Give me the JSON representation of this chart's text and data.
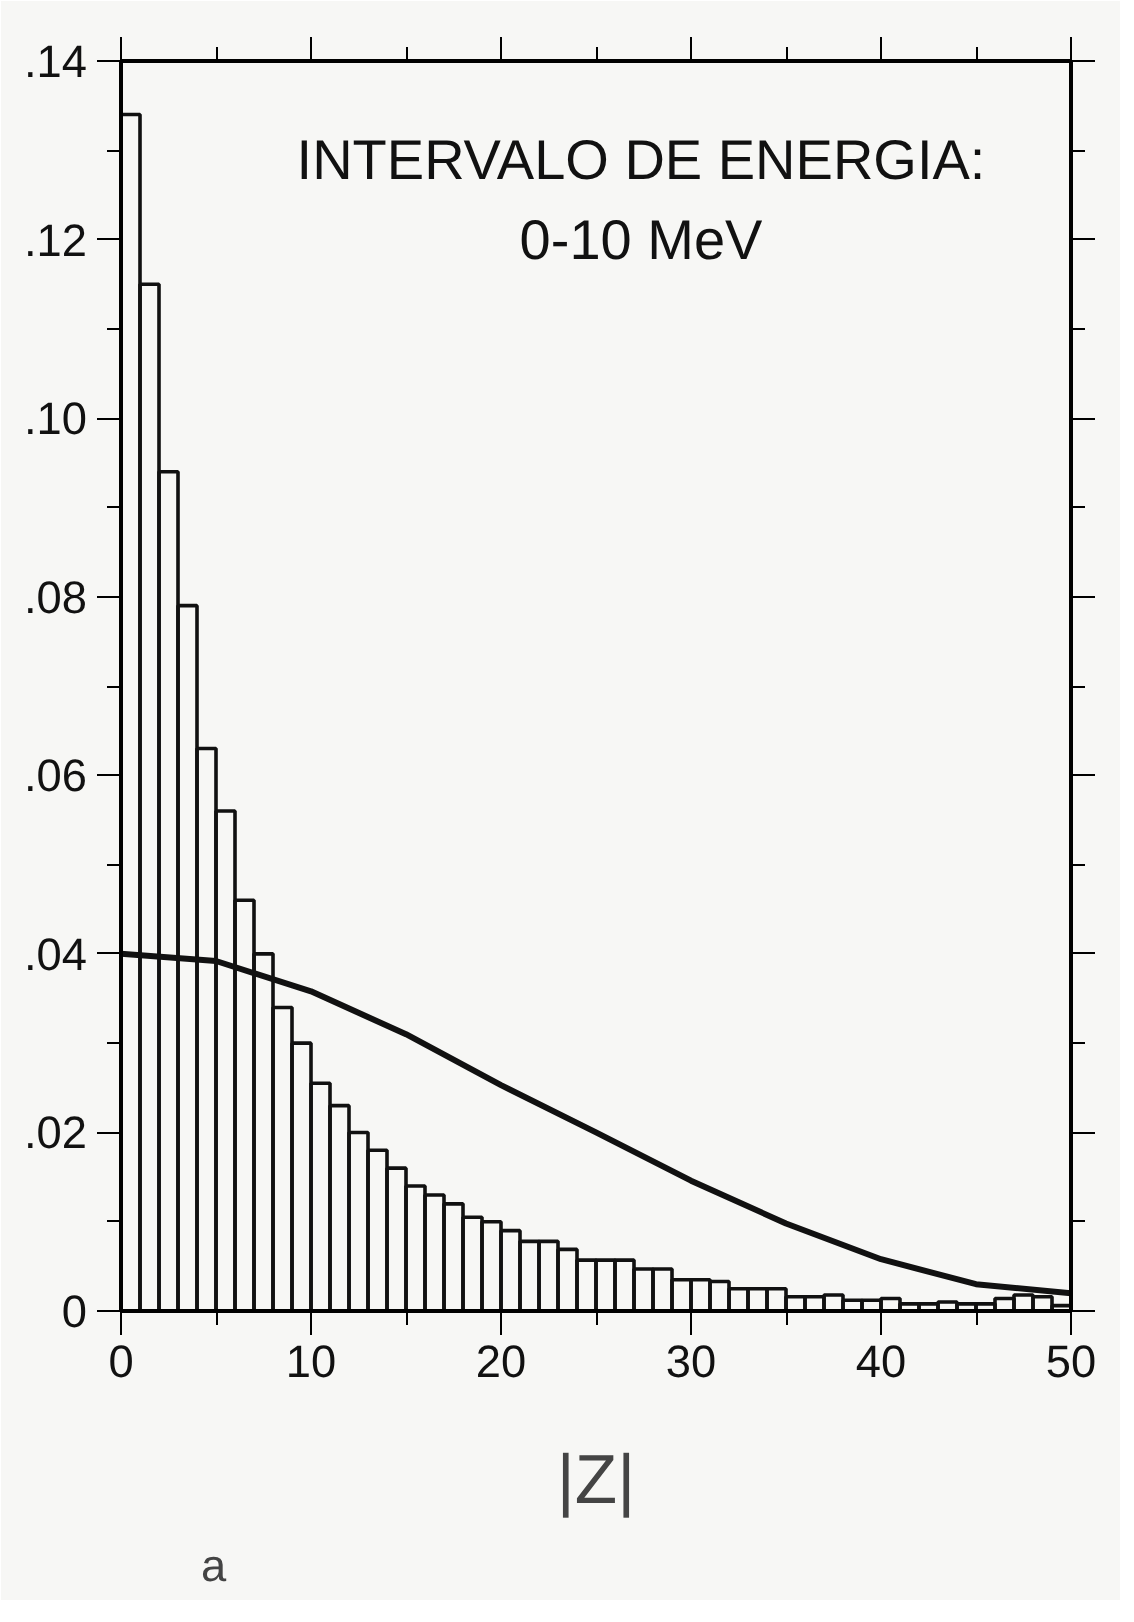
{
  "chart_data": {
    "type": "histogram",
    "xlabel": "|Z|",
    "annotations": [
      "INTERVALO DE ENERGIA:",
      "0-10 MeV",
      "a"
    ],
    "xlim": [
      0,
      50
    ],
    "ylim": [
      0,
      0.14
    ],
    "xticks": [
      0,
      {
        "value": 5,
        "label": null
      },
      10,
      {
        "value": 15,
        "label": null
      },
      20,
      {
        "value": 25,
        "label": null
      },
      30,
      {
        "value": 35,
        "label": null
      },
      40,
      {
        "value": 45,
        "label": null
      },
      50
    ],
    "yticks": [
      {
        "value": 0,
        "label": "0"
      },
      {
        "value": 0.01,
        "label": null
      },
      {
        "value": 0.02,
        "label": ".02"
      },
      {
        "value": 0.03,
        "label": null
      },
      {
        "value": 0.04,
        "label": ".04"
      },
      {
        "value": 0.05,
        "label": null
      },
      {
        "value": 0.06,
        "label": ".06"
      },
      {
        "value": 0.07,
        "label": null
      },
      {
        "value": 0.08,
        "label": ".08"
      },
      {
        "value": 0.09,
        "label": null
      },
      {
        "value": 0.1,
        "label": ".10"
      },
      {
        "value": 0.11,
        "label": null
      },
      {
        "value": 0.12,
        "label": ".12"
      },
      {
        "value": 0.13,
        "label": null
      },
      {
        "value": 0.14,
        "label": ".14"
      }
    ],
    "grid": false,
    "series": [
      {
        "color": "#111111",
        "bins": [
          0,
          1,
          2,
          3,
          4,
          5,
          6,
          7,
          8,
          9,
          10,
          11,
          12,
          13,
          14,
          15,
          16,
          17,
          18,
          19,
          20,
          21,
          22,
          23,
          24,
          25,
          26,
          27,
          28,
          29,
          30,
          31,
          32,
          33,
          34,
          35,
          36,
          37,
          38,
          39,
          40,
          41,
          42,
          43,
          44,
          45,
          46,
          47,
          48,
          49,
          50
        ],
        "values": [
          0.134,
          0.115,
          0.094,
          0.079,
          0.063,
          0.056,
          0.046,
          0.04,
          0.034,
          0.03,
          0.0255,
          0.023,
          0.02,
          0.018,
          0.016,
          0.014,
          0.013,
          0.012,
          0.0105,
          0.01,
          0.009,
          0.0078,
          0.0078,
          0.0069,
          0.0057,
          0.0057,
          0.0057,
          0.0047,
          0.0047,
          0.0035,
          0.0035,
          0.0033,
          0.0025,
          0.0025,
          0.0025,
          0.0016,
          0.0016,
          0.0018,
          0.0012,
          0.0012,
          0.0014,
          0.0008,
          0.0008,
          0.001,
          0.0008,
          0.0008,
          0.0014,
          0.0018,
          0.0016,
          0.0006
        ]
      },
      {
        "type": "line",
        "color": "#111111",
        "x": [
          0,
          5,
          10,
          15,
          20,
          25,
          30,
          35,
          40,
          45,
          50
        ],
        "values": [
          0.04,
          0.0392,
          0.0358,
          0.031,
          0.0253,
          0.02,
          0.0146,
          0.0098,
          0.0058,
          0.003,
          0.002
        ]
      }
    ]
  }
}
